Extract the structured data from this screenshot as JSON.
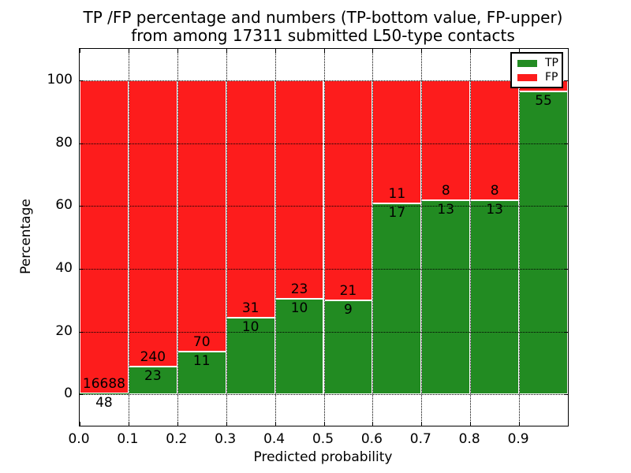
{
  "chart_data": {
    "type": "bar",
    "stacked_percentage": true,
    "title_line1": "TP /FP percentage and numbers (TP-bottom value, FP-upper)",
    "title_line2": "from among 17311 submitted L50-type contacts",
    "xlabel": "Predicted probability",
    "ylabel": "Percentage",
    "xlim": [
      0.0,
      1.0
    ],
    "ylim": [
      -10,
      110
    ],
    "x_ticks": [
      "0.0",
      "0.1",
      "0.2",
      "0.3",
      "0.4",
      "0.5",
      "0.6",
      "0.7",
      "0.8",
      "0.9"
    ],
    "x_tick_values": [
      0.0,
      0.1,
      0.2,
      0.3,
      0.4,
      0.5,
      0.6,
      0.7,
      0.8,
      0.9
    ],
    "y_ticks": [
      "0",
      "20",
      "40",
      "60",
      "80",
      "100"
    ],
    "y_tick_values": [
      0,
      20,
      40,
      60,
      80,
      100
    ],
    "grid": true,
    "grid_style": "dotted",
    "bar_edge_color": "#ffffff",
    "colors": {
      "tp": "#228b22",
      "fp": "#fd1c1c"
    },
    "legend": {
      "position": "upper-right",
      "entries": [
        {
          "label": "TP",
          "color_key": "tp"
        },
        {
          "label": "FP",
          "color_key": "fp"
        }
      ]
    },
    "total_submitted": 17311,
    "bins": [
      {
        "range": "0.0-0.1",
        "tp": 48,
        "fp": 16688,
        "tp_pct": 0.29
      },
      {
        "range": "0.1-0.2",
        "tp": 23,
        "fp": 240,
        "tp_pct": 8.75
      },
      {
        "range": "0.2-0.3",
        "tp": 11,
        "fp": 70,
        "tp_pct": 13.58
      },
      {
        "range": "0.3-0.4",
        "tp": 10,
        "fp": 31,
        "tp_pct": 24.39
      },
      {
        "range": "0.4-0.5",
        "tp": 10,
        "fp": 23,
        "tp_pct": 30.3
      },
      {
        "range": "0.5-0.6",
        "tp": 9,
        "fp": 21,
        "tp_pct": 30.0
      },
      {
        "range": "0.6-0.7",
        "tp": 17,
        "fp": 11,
        "tp_pct": 60.71
      },
      {
        "range": "0.7-0.8",
        "tp": 13,
        "fp": 8,
        "tp_pct": 61.9
      },
      {
        "range": "0.8-0.9",
        "tp": 13,
        "fp": 8,
        "tp_pct": 61.9
      },
      {
        "range": "0.9-1.0",
        "tp": 55,
        "fp": null,
        "fp_label_hidden": true,
        "tp_pct": 96.49
      }
    ]
  }
}
